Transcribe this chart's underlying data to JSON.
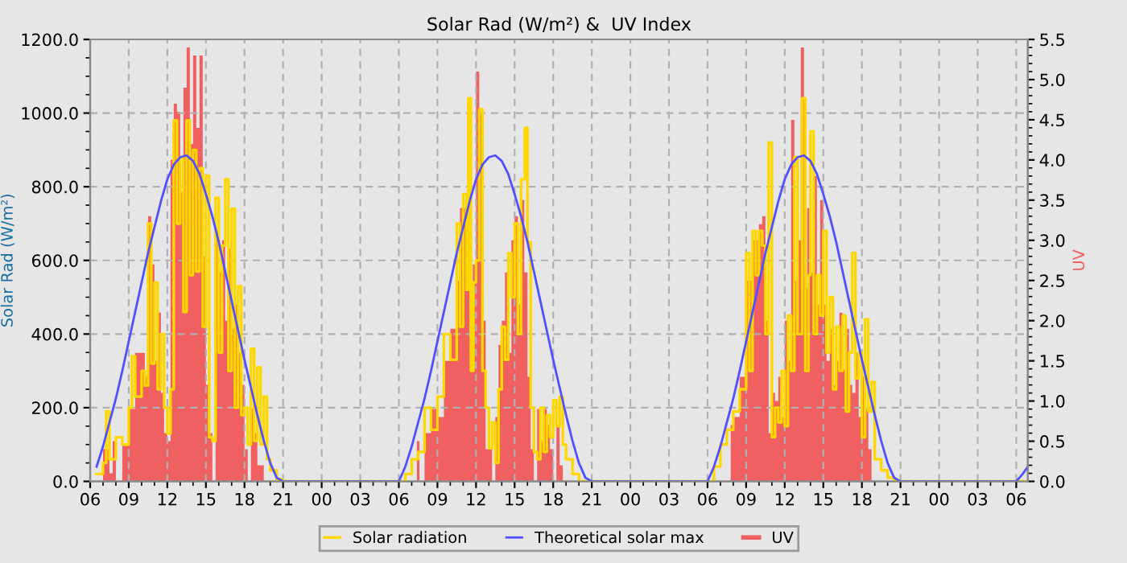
{
  "chart_data": {
    "type": "line",
    "title": "Solar Rad (W/m²) &  UV Index",
    "ylabel": "Solar Rad (W/m²)",
    "y2label": "UV",
    "xlim": [
      6,
      78.9
    ],
    "xticks": [
      {
        "value": 6,
        "label": "06"
      },
      {
        "value": 9,
        "label": "09"
      },
      {
        "value": 12,
        "label": "12"
      },
      {
        "value": 15,
        "label": "15"
      },
      {
        "value": 18,
        "label": "18"
      },
      {
        "value": 21,
        "label": "21"
      },
      {
        "value": 24,
        "label": "00"
      },
      {
        "value": 27,
        "label": "03"
      },
      {
        "value": 30,
        "label": "06"
      },
      {
        "value": 33,
        "label": "09"
      },
      {
        "value": 36,
        "label": "12"
      },
      {
        "value": 39,
        "label": "15"
      },
      {
        "value": 42,
        "label": "18"
      },
      {
        "value": 45,
        "label": "21"
      },
      {
        "value": 48,
        "label": "00"
      },
      {
        "value": 51,
        "label": "03"
      },
      {
        "value": 54,
        "label": "06"
      },
      {
        "value": 57,
        "label": "09"
      },
      {
        "value": 60,
        "label": "12"
      },
      {
        "value": 63,
        "label": "15"
      },
      {
        "value": 66,
        "label": "18"
      },
      {
        "value": 69,
        "label": "21"
      },
      {
        "value": 72,
        "label": "00"
      },
      {
        "value": 75,
        "label": "03"
      },
      {
        "value": 78,
        "label": "06"
      }
    ],
    "ylim": [
      0,
      1200
    ],
    "yticks": [
      {
        "value": 0,
        "label": "0.0"
      },
      {
        "value": 200,
        "label": "200.0"
      },
      {
        "value": 400,
        "label": "400.0"
      },
      {
        "value": 600,
        "label": "600.0"
      },
      {
        "value": 800,
        "label": "800.0"
      },
      {
        "value": 1000,
        "label": "1000.0"
      },
      {
        "value": 1200,
        "label": "1200.0"
      }
    ],
    "y2lim": [
      0,
      5.5
    ],
    "y2ticks": [
      {
        "value": 0,
        "label": "0.0"
      },
      {
        "value": 0.5,
        "label": "0.5"
      },
      {
        "value": 1,
        "label": "1.0"
      },
      {
        "value": 1.5,
        "label": "1.5"
      },
      {
        "value": 2,
        "label": "2.0"
      },
      {
        "value": 2.5,
        "label": "2.5"
      },
      {
        "value": 3,
        "label": "3.0"
      },
      {
        "value": 3.5,
        "label": "3.5"
      },
      {
        "value": 4,
        "label": "4.0"
      },
      {
        "value": 4.5,
        "label": "4.5"
      },
      {
        "value": 5,
        "label": "5.0"
      },
      {
        "value": 5.5,
        "label": "5.5"
      }
    ],
    "grid": true,
    "legend": "bottom",
    "series": [
      {
        "name": "UV",
        "type": "area",
        "axis": "y2",
        "color": "#f06060",
        "x": [
          6.5,
          7,
          7.5,
          7.75,
          8,
          8.5,
          9,
          9.5,
          10,
          10.25,
          10.5,
          10.75,
          11,
          11.25,
          11.5,
          11.75,
          12,
          12.25,
          12.5,
          12.75,
          13,
          13.25,
          13.5,
          13.75,
          14,
          14.25,
          14.5,
          14.75,
          15,
          15.25,
          15.5,
          15.75,
          16,
          16.25,
          16.5,
          16.75,
          17,
          17.25,
          17.5,
          17.75,
          18,
          18.25,
          18.5,
          18.75,
          19,
          19.5,
          31,
          31.4,
          31.6,
          32,
          32.5,
          33,
          33.5,
          34,
          34.5,
          34.75,
          35,
          35.25,
          35.5,
          35.75,
          36,
          36.25,
          36.5,
          36.75,
          37,
          37.25,
          37.5,
          37.75,
          38,
          38.25,
          38.5,
          38.75,
          39,
          39.25,
          39.5,
          39.75,
          40,
          40.25,
          40.5,
          40.75,
          41,
          41.25,
          41.5,
          41.75,
          42,
          42.25,
          42.5,
          42.75,
          55.6,
          55.8,
          56,
          56.5,
          57,
          57.5,
          58,
          58.25,
          58.5,
          58.75,
          59,
          59.25,
          59.5,
          59.75,
          60,
          60.25,
          60.5,
          60.75,
          61,
          61.25,
          61.5,
          61.75,
          62,
          62.25,
          62.5,
          62.75,
          63,
          63.25,
          63.5,
          63.75,
          64,
          64.25,
          64.5,
          64.75,
          65,
          65.25,
          65.5,
          65.75,
          66,
          66.25,
          66.5,
          66.75,
          78.9
        ],
        "values": [
          0,
          0.4,
          0.1,
          0.5,
          0,
          0.45,
          0.9,
          1.6,
          1.6,
          1.3,
          3.3,
          2.7,
          1.5,
          2.1,
          1.1,
          0.6,
          0.5,
          4.0,
          4.7,
          4.6,
          3.6,
          4.9,
          5.4,
          4.2,
          5.3,
          4.4,
          5.3,
          2.8,
          1.2,
          0.6,
          0,
          3.1,
          2.6,
          3.0,
          2.0,
          2.9,
          1.9,
          2.2,
          1.6,
          1.2,
          0.4,
          0,
          0.9,
          0.6,
          0.2,
          0,
          0,
          0.5,
          0,
          0.6,
          0.9,
          0.8,
          1.5,
          1.9,
          2.5,
          3.4,
          3.4,
          2.6,
          1.8,
          2.7,
          5.1,
          4.6,
          2.0,
          0.4,
          0.4,
          0,
          0.8,
          1.7,
          2.0,
          2.6,
          1.6,
          3.0,
          3.3,
          2.2,
          3.5,
          2.6,
          1.3,
          0.4,
          0,
          0.9,
          0.5,
          0.9,
          0.7,
          0.4,
          0,
          0.7,
          0.2,
          0,
          0,
          0.7,
          0.8,
          1.3,
          2.5,
          3.0,
          3.2,
          3.3,
          2.0,
          0.6,
          1.1,
          1.0,
          1.3,
          0.8,
          2.0,
          1.5,
          4.5,
          2.5,
          3.0,
          5.4,
          2.4,
          3.4,
          2.6,
          3.8,
          2.2,
          3.5,
          2.2,
          1.5,
          1.9,
          1.2,
          1.5,
          2.1,
          1.4,
          1.9,
          1.2,
          1.1,
          1.6,
          0.8,
          1.3,
          0.9,
          0.4,
          0,
          0
        ]
      },
      {
        "name": "Solar radiation",
        "type": "step",
        "color": "#ffd700",
        "x": [
          6.5,
          7,
          7.25,
          7.5,
          8,
          8.5,
          9,
          9.25,
          9.5,
          10,
          10.25,
          10.5,
          10.75,
          11,
          11.25,
          11.5,
          11.75,
          12,
          12.25,
          12.5,
          12.75,
          13,
          13.25,
          13.5,
          13.75,
          14,
          14.25,
          14.5,
          14.75,
          15,
          15.25,
          15.5,
          15.75,
          16,
          16.25,
          16.5,
          16.75,
          17,
          17.25,
          17.5,
          17.75,
          18,
          18.25,
          18.5,
          18.75,
          19,
          19.25,
          19.5,
          19.75,
          20,
          20.5,
          21,
          30,
          30.5,
          31,
          31.5,
          32,
          32.5,
          33,
          33.5,
          34,
          34.5,
          34.75,
          35,
          35.25,
          35.4,
          35.6,
          35.8,
          36,
          36.25,
          36.5,
          36.75,
          37,
          37.25,
          37.5,
          37.75,
          38,
          38.25,
          38.5,
          38.75,
          39,
          39.25,
          39.5,
          39.8,
          40,
          40.25,
          40.5,
          40.75,
          41,
          41.25,
          41.5,
          41.75,
          42,
          42.25,
          42.5,
          42.75,
          43,
          43.5,
          44,
          54,
          54.5,
          55,
          55.5,
          56,
          56.5,
          57,
          57.25,
          57.5,
          57.75,
          58,
          58.25,
          58.5,
          58.75,
          59,
          59.25,
          59.5,
          59.75,
          60,
          60.25,
          60.5,
          60.75,
          61,
          61.35,
          61.6,
          61.85,
          62,
          62.25,
          62.5,
          62.75,
          63,
          63.25,
          63.5,
          63.75,
          64,
          64.25,
          64.5,
          64.75,
          65,
          65.25,
          65.5,
          65.75,
          66,
          66.25,
          66.5,
          66.75,
          67,
          67.5,
          68,
          68.5,
          78.9
        ],
        "values": [
          20,
          50,
          190,
          60,
          120,
          100,
          200,
          340,
          230,
          300,
          260,
          700,
          320,
          540,
          250,
          400,
          200,
          130,
          250,
          980,
          700,
          880,
          460,
          980,
          560,
          900,
          570,
          850,
          420,
          830,
          120,
          110,
          770,
          350,
          640,
          820,
          300,
          740,
          200,
          530,
          180,
          200,
          100,
          360,
          110,
          310,
          100,
          230,
          60,
          30,
          5,
          0,
          0,
          20,
          60,
          80,
          200,
          140,
          230,
          400,
          330,
          700,
          420,
          780,
          520,
          1040,
          300,
          540,
          600,
          1010,
          300,
          200,
          90,
          160,
          50,
          250,
          420,
          330,
          620,
          500,
          700,
          400,
          820,
          960,
          650,
          200,
          80,
          60,
          200,
          80,
          180,
          120,
          220,
          150,
          230,
          100,
          60,
          20,
          0,
          0,
          40,
          100,
          140,
          190,
          250,
          620,
          300,
          680,
          560,
          680,
          640,
          400,
          920,
          120,
          200,
          160,
          300,
          150,
          450,
          300,
          880,
          400,
          1040,
          300,
          560,
          950,
          400,
          560,
          450,
          680,
          350,
          500,
          250,
          420,
          300,
          450,
          190,
          350,
          620,
          280,
          350,
          120,
          440,
          190,
          270,
          60,
          30,
          10,
          0,
          0
        ]
      },
      {
        "name": "Theoretical solar max",
        "color": "#5050ff",
        "x": [
          6.5,
          7,
          7.5,
          8,
          8.5,
          9,
          9.5,
          10,
          10.5,
          11,
          11.5,
          12,
          12.5,
          13,
          13.5,
          14,
          14.5,
          15,
          15.5,
          16,
          16.5,
          17,
          17.5,
          18,
          18.5,
          19,
          19.5,
          20,
          20.5,
          21,
          30,
          30.5,
          31,
          31.5,
          32,
          32.5,
          33,
          33.5,
          34,
          34.5,
          35,
          35.5,
          36,
          36.5,
          37,
          37.5,
          38,
          38.5,
          39,
          39.5,
          40,
          40.5,
          41,
          41.5,
          42,
          42.5,
          43,
          43.5,
          44,
          44.5,
          45,
          54,
          54.5,
          55,
          55.5,
          56,
          56.5,
          57,
          57.5,
          58,
          58.5,
          59,
          59.5,
          60,
          60.5,
          61,
          61.5,
          62,
          62.5,
          63,
          63.5,
          64,
          64.5,
          65,
          65.5,
          66,
          66.5,
          67,
          67.5,
          68,
          68.5,
          69,
          78,
          78.5,
          78.9
        ],
        "values": [
          40,
          95,
          160,
          225,
          300,
          380,
          460,
          540,
          620,
          690,
          760,
          820,
          860,
          880,
          885,
          870,
          835,
          780,
          720,
          650,
          570,
          490,
          410,
          330,
          255,
          180,
          110,
          50,
          10,
          0,
          0,
          40,
          95,
          160,
          225,
          300,
          380,
          460,
          540,
          620,
          690,
          760,
          820,
          860,
          880,
          885,
          870,
          835,
          780,
          720,
          650,
          570,
          490,
          410,
          330,
          255,
          180,
          110,
          50,
          10,
          0,
          0,
          40,
          95,
          160,
          225,
          300,
          380,
          460,
          540,
          620,
          690,
          760,
          820,
          860,
          880,
          885,
          870,
          835,
          780,
          720,
          650,
          570,
          490,
          410,
          330,
          255,
          180,
          110,
          50,
          10,
          0,
          0,
          20,
          40
        ]
      }
    ]
  }
}
